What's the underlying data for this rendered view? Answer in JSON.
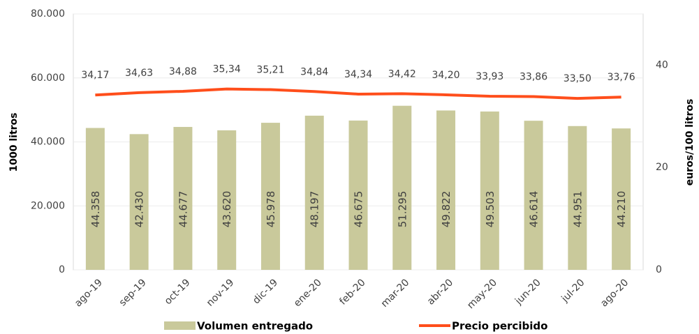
{
  "chart_data": {
    "type": "bar-line",
    "categories": [
      "ago-19",
      "sep-19",
      "oct-19",
      "nov-19",
      "dic-19",
      "ene-20",
      "feb-20",
      "mar-20",
      "abr-20",
      "may-20",
      "jun-20",
      "jul-20",
      "ago-20"
    ],
    "series": [
      {
        "name": "Volumen entregado",
        "type": "bar",
        "color": "#c9c99b",
        "values": [
          44358,
          42430,
          44677,
          43620,
          45978,
          48197,
          46675,
          51295,
          49822,
          49503,
          46614,
          44951,
          44210
        ],
        "value_labels": [
          "44.358",
          "42.430",
          "44.677",
          "43.620",
          "45.978",
          "48.197",
          "46.675",
          "51.295",
          "49.822",
          "49.503",
          "46.614",
          "44.951",
          "44.210"
        ]
      },
      {
        "name": "Precio percibido",
        "type": "line",
        "axis": "y2",
        "color": "#ff4e1b",
        "values": [
          34.17,
          34.63,
          34.88,
          35.34,
          35.21,
          34.84,
          34.34,
          34.42,
          34.2,
          33.93,
          33.86,
          33.5,
          33.76
        ],
        "value_labels": [
          "34,17",
          "34,63",
          "34,88",
          "35,34",
          "35,21",
          "34,84",
          "34,34",
          "34,42",
          "34,20",
          "33,93",
          "33,86",
          "33,50",
          "33,76"
        ]
      }
    ],
    "ylabel": "1000 litros",
    "y2label": "euros/100 litros",
    "ylim": [
      0,
      80000
    ],
    "yticks": [
      0,
      {
        "value": 20000,
        "label": "20.000"
      },
      {
        "value": 40000,
        "label": "40.000"
      },
      {
        "value": 60000,
        "label": "60.000"
      },
      {
        "value": 80000,
        "label": "80.000"
      }
    ],
    "y2lim": [
      0,
      50
    ],
    "y2ticks": [
      0,
      20,
      40
    ],
    "grid": true,
    "legend": "bottom"
  }
}
